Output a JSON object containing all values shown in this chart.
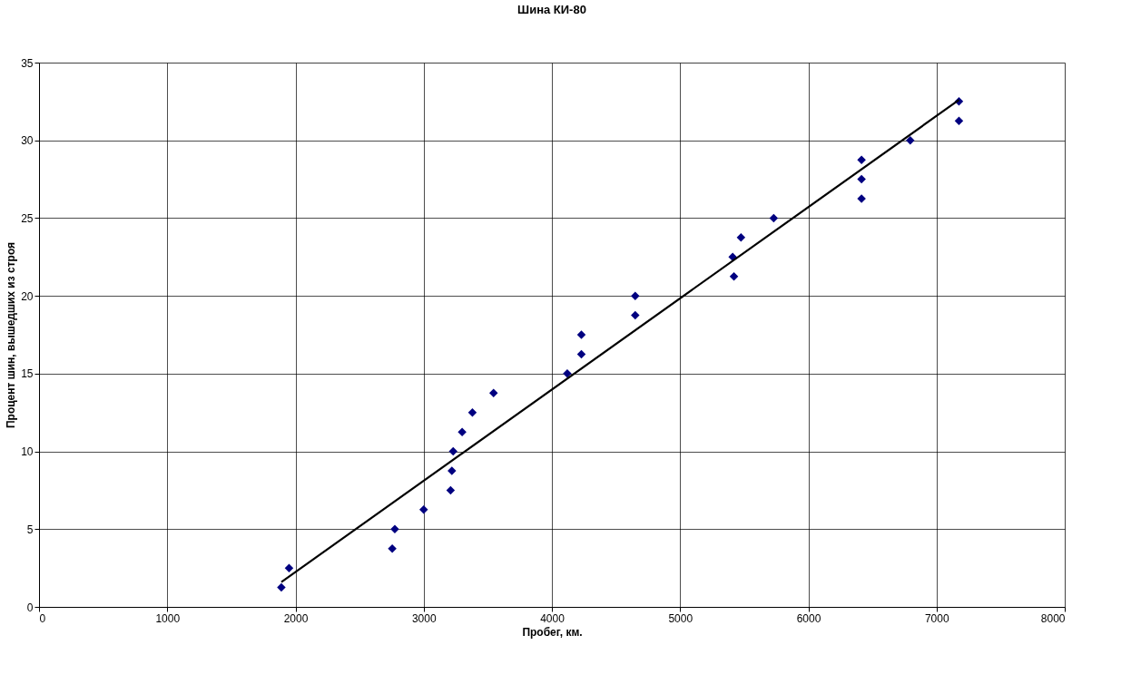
{
  "chart_data": {
    "type": "scatter",
    "title": "Шина КИ-80",
    "xlabel": "Пробег, км.",
    "ylabel": "Процент шин, вышедших из строя",
    "xlim": [
      0,
      8000
    ],
    "xticks": [
      0,
      1000,
      2000,
      3000,
      4000,
      5000,
      6000,
      7000,
      8000
    ],
    "ylim": [
      0,
      35
    ],
    "yticks": [
      0,
      5,
      10,
      15,
      20,
      25,
      30,
      35
    ],
    "grid": true,
    "series": [
      {
        "color": "#000080",
        "marker": "diamond",
        "x": [
          1890,
          1950,
          2755,
          2775,
          3000,
          3210,
          3220,
          3230,
          3300,
          3380,
          3545,
          4120,
          4230,
          4230,
          4650,
          4650,
          5420,
          5410,
          5475,
          5730,
          6415,
          6415,
          6415,
          6795,
          7175,
          7175
        ],
        "values": [
          1.25,
          2.5,
          3.75,
          5,
          6.25,
          7.5,
          8.75,
          10,
          11.25,
          12.5,
          13.75,
          15,
          16.25,
          17.5,
          18.75,
          20,
          21.25,
          22.5,
          23.75,
          25,
          26.25,
          27.5,
          28.75,
          30,
          31.25,
          32.5
        ]
      },
      {
        "type": "line",
        "color": "#000000",
        "marker": "none",
        "line_style": "solid",
        "x": [
          1890,
          7175
        ],
        "values": [
          1.6,
          32.6
        ]
      }
    ]
  }
}
